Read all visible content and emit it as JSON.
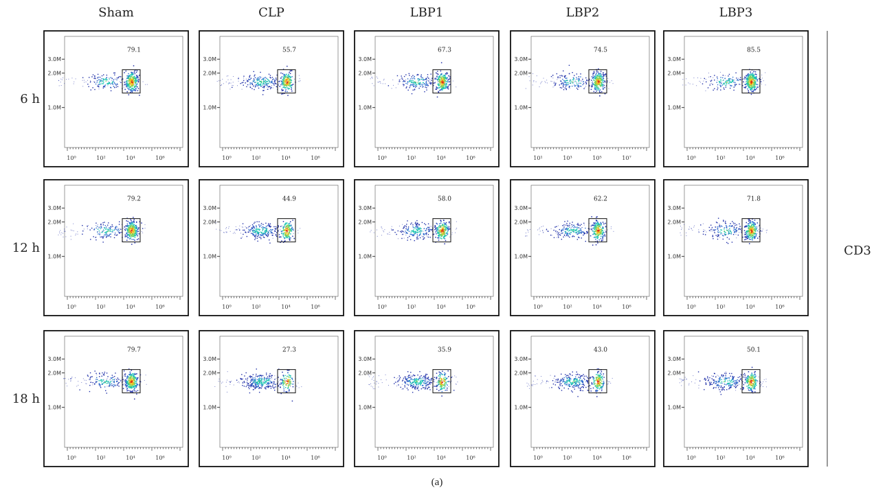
{
  "figure": {
    "caption": "(a)",
    "marker_label": "CD3",
    "columns": [
      "Sham",
      "CLP",
      "LBP1",
      "LBP2",
      "LBP3"
    ],
    "rows": [
      "6 h",
      "12 h",
      "18 h"
    ]
  },
  "chart_data": {
    "type": "scatter",
    "subtype": "flow-cytometry-density-plot-grid",
    "y_ticks": [
      "1.0M",
      "2.0M",
      "3.0M"
    ],
    "x_ticks_default": [
      "10⁰",
      "10²",
      "10⁴",
      "10⁶"
    ],
    "x_ticks_alt": [
      "10¹",
      "10³",
      "10⁵",
      "10⁷"
    ],
    "colors": {
      "low": "#1f2fa8",
      "mid": "#19c5b0",
      "high": "#f0c020",
      "peak": "#e03010",
      "frame": "#111111"
    },
    "panels": [
      {
        "row": "6 h",
        "column": "Sham",
        "gate_percent": "79.1",
        "x_ticks": "default"
      },
      {
        "row": "6 h",
        "column": "CLP",
        "gate_percent": "55.7",
        "x_ticks": "default"
      },
      {
        "row": "6 h",
        "column": "LBP1",
        "gate_percent": "67.3",
        "x_ticks": "default"
      },
      {
        "row": "6 h",
        "column": "LBP2",
        "gate_percent": "74.5",
        "x_ticks": "alt"
      },
      {
        "row": "6 h",
        "column": "LBP3",
        "gate_percent": "85.5",
        "x_ticks": "default"
      },
      {
        "row": "12 h",
        "column": "Sham",
        "gate_percent": "79.2",
        "x_ticks": "default"
      },
      {
        "row": "12 h",
        "column": "CLP",
        "gate_percent": "44.9",
        "x_ticks": "default"
      },
      {
        "row": "12 h",
        "column": "LBP1",
        "gate_percent": "58.0",
        "x_ticks": "default"
      },
      {
        "row": "12 h",
        "column": "LBP2",
        "gate_percent": "62.2",
        "x_ticks": "default"
      },
      {
        "row": "12 h",
        "column": "LBP3",
        "gate_percent": "71.8",
        "x_ticks": "default"
      },
      {
        "row": "18 h",
        "column": "Sham",
        "gate_percent": "79.7",
        "x_ticks": "default"
      },
      {
        "row": "18 h",
        "column": "CLP",
        "gate_percent": "27.3",
        "x_ticks": "default"
      },
      {
        "row": "18 h",
        "column": "LBP1",
        "gate_percent": "35.9",
        "x_ticks": "default"
      },
      {
        "row": "18 h",
        "column": "LBP2",
        "gate_percent": "43.0",
        "x_ticks": "default"
      },
      {
        "row": "18 h",
        "column": "LBP3",
        "gate_percent": "50.1",
        "x_ticks": "default"
      }
    ]
  }
}
